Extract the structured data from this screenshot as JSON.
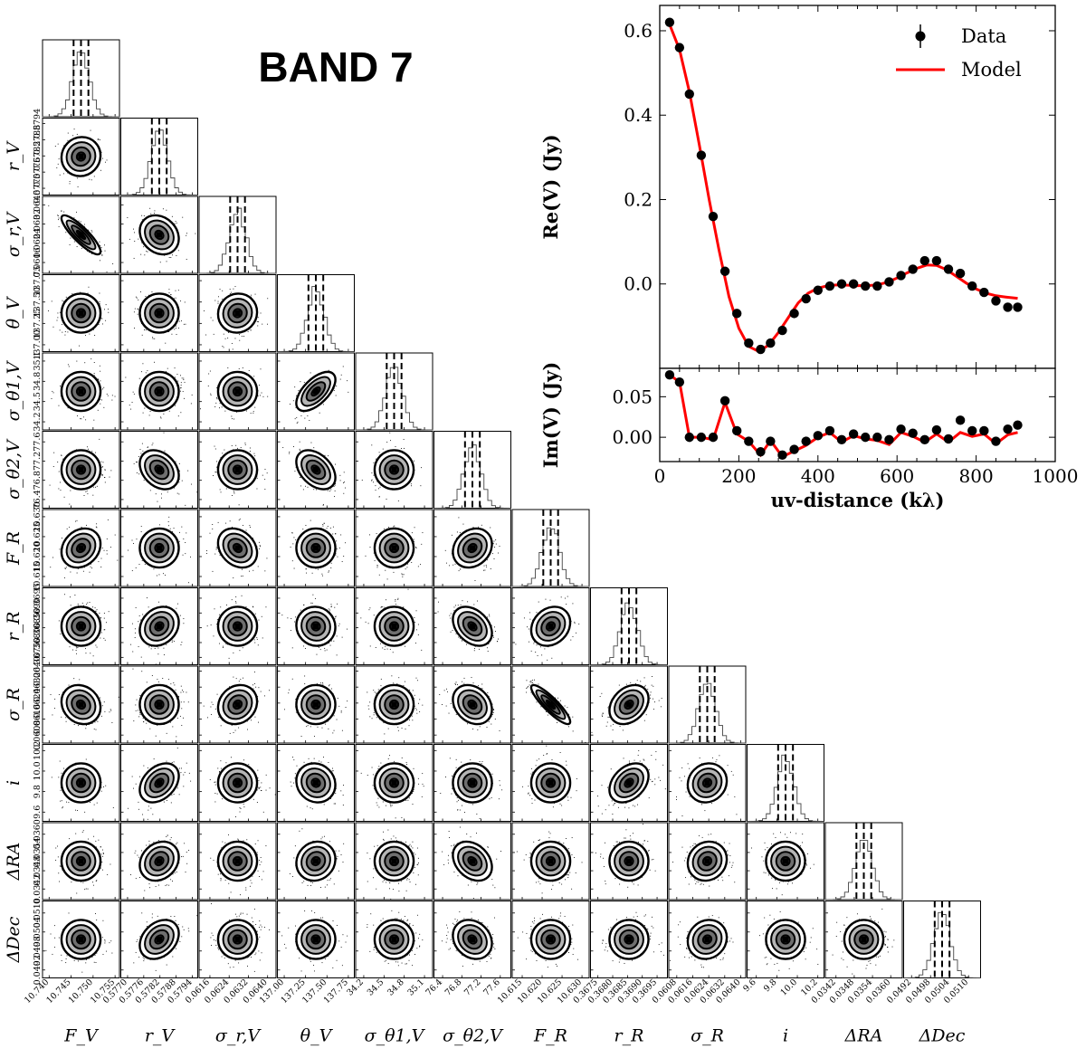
{
  "figure": {
    "band_label": "BAND 7"
  },
  "chart_data": [
    {
      "type": "corner",
      "title": "BAND 7",
      "parameters": [
        {
          "key": "F_V",
          "label": "F_V",
          "ticks": [
            "10.740",
            "10.745",
            "10.750",
            "10.755"
          ],
          "range": [
            10.7385,
            10.756
          ]
        },
        {
          "key": "r_V",
          "label": "r_V",
          "ticks": [
            "0.5770",
            "0.5776",
            "0.5782",
            "0.5788",
            "0.5794"
          ],
          "range": [
            0.57675,
            0.5796
          ]
        },
        {
          "key": "sigma_r_V",
          "label": "σ_r,V",
          "ticks": [
            "0.0616",
            "0.0624",
            "0.0632",
            "0.0640"
          ],
          "range": [
            0.06115,
            0.06435
          ]
        },
        {
          "key": "theta_V",
          "label": "θ_V",
          "ticks": [
            "137.00",
            "137.25",
            "137.50",
            "137.75"
          ],
          "range": [
            136.92,
            137.82
          ]
        },
        {
          "key": "sigma_theta1_V",
          "label": "σ_θ1,V",
          "ticks": [
            "34.2",
            "34.5",
            "34.8",
            "35.1"
          ],
          "range": [
            34.08,
            35.22
          ]
        },
        {
          "key": "sigma_theta2_V",
          "label": "σ_θ2,V",
          "ticks": [
            "76.4",
            "76.8",
            "77.2",
            "77.6"
          ],
          "range": [
            76.22,
            77.82
          ]
        },
        {
          "key": "F_R",
          "label": "F_R",
          "ticks": [
            "10.615",
            "10.620",
            "10.625",
            "10.630"
          ],
          "range": [
            10.6125,
            10.6318
          ]
        },
        {
          "key": "r_R",
          "label": "r_R",
          "ticks": [
            "0.3675",
            "0.3680",
            "0.3685",
            "0.3690",
            "0.3695"
          ],
          "range": [
            0.36725,
            0.36985
          ]
        },
        {
          "key": "sigma_R",
          "label": "σ_R",
          "ticks": [
            "0.0608",
            "0.0616",
            "0.0624",
            "0.0632",
            "0.0640"
          ],
          "range": [
            0.0604,
            0.06425
          ]
        },
        {
          "key": "i",
          "label": "i",
          "ticks": [
            "9.6",
            "9.8",
            "10.0",
            "10.2"
          ],
          "range": [
            9.51,
            10.26
          ]
        },
        {
          "key": "dRA",
          "label": "ΔRA",
          "ticks": [
            "0.0342",
            "0.0348",
            "0.0354",
            "0.0360"
          ],
          "range": [
            0.03385,
            0.03638
          ]
        },
        {
          "key": "dDec",
          "label": "ΔDec",
          "ticks": [
            "0.0492",
            "0.0498",
            "0.0504",
            "0.0510"
          ],
          "range": [
            0.04895,
            0.05138
          ]
        }
      ],
      "correlations": [
        [
          1,
          0,
          0,
          0,
          0,
          0,
          0,
          0,
          0,
          0,
          0,
          0
        ],
        [
          0.05,
          1,
          0,
          0,
          0,
          0,
          0,
          0,
          0,
          0,
          0,
          0
        ],
        [
          -0.86,
          -0.2,
          1,
          0,
          0,
          0,
          0,
          0,
          0,
          0,
          0,
          0
        ],
        [
          0.0,
          0.0,
          0.05,
          1,
          0,
          0,
          0,
          0,
          0,
          0,
          0,
          0
        ],
        [
          0.0,
          0.0,
          0.0,
          0.6,
          1,
          0,
          0,
          0,
          0,
          0,
          0,
          0
        ],
        [
          0.0,
          -0.3,
          0.0,
          -0.4,
          0.0,
          1,
          0,
          0,
          0,
          0,
          0,
          0
        ],
        [
          0.2,
          0.0,
          -0.25,
          0.0,
          0.0,
          0.2,
          1,
          0,
          0,
          0,
          0,
          0
        ],
        [
          0.0,
          0.2,
          0.0,
          -0.05,
          0.0,
          -0.35,
          0.2,
          1,
          0,
          0,
          0,
          0
        ],
        [
          -0.15,
          0.0,
          0.15,
          0.0,
          0.0,
          -0.25,
          -0.88,
          0.3,
          1,
          0,
          0,
          0
        ],
        [
          0.0,
          0.35,
          0.0,
          -0.1,
          0.0,
          0.0,
          0.0,
          0.35,
          0.1,
          1,
          0,
          0
        ],
        [
          0.0,
          0.2,
          0.0,
          0.1,
          0.0,
          -0.3,
          0.0,
          0.0,
          0.1,
          0.0,
          1,
          0
        ],
        [
          0.0,
          0.3,
          0.0,
          0.0,
          0.0,
          -0.2,
          0.0,
          0.0,
          0.1,
          0.0,
          0.0,
          1
        ]
      ]
    },
    {
      "type": "scatter",
      "xlabel": "uv-distance (kλ)",
      "ylabel": "Re(V) (Jy)",
      "xlim": [
        0,
        1000
      ],
      "ylim": [
        -0.2,
        0.66
      ],
      "xticks": [
        0,
        200,
        400,
        600,
        800,
        1000
      ],
      "yticks": [
        "0.0",
        "0.2",
        "0.4",
        "0.6"
      ],
      "legend": [
        "Data",
        "Model"
      ],
      "legend_position": "top-right",
      "data": {
        "x": [
          25,
          50,
          75,
          105,
          135,
          165,
          195,
          225,
          255,
          280,
          310,
          340,
          370,
          400,
          430,
          460,
          490,
          520,
          550,
          580,
          610,
          640,
          670,
          700,
          730,
          760,
          790,
          820,
          850,
          880,
          905
        ],
        "y": [
          0.62,
          0.56,
          0.45,
          0.305,
          0.16,
          0.03,
          -0.07,
          -0.14,
          -0.155,
          -0.14,
          -0.11,
          -0.07,
          -0.035,
          -0.015,
          -0.005,
          0.0,
          0.0,
          -0.005,
          -0.005,
          0.005,
          0.02,
          0.035,
          0.055,
          0.055,
          0.035,
          0.025,
          -0.005,
          -0.02,
          -0.04,
          -0.055,
          -0.055
        ]
      },
      "model": {
        "x": [
          25,
          50,
          75,
          100,
          125,
          150,
          175,
          200,
          225,
          250,
          275,
          300,
          325,
          350,
          375,
          400,
          425,
          450,
          475,
          500,
          525,
          550,
          575,
          600,
          625,
          650,
          675,
          700,
          725,
          750,
          775,
          800,
          825,
          850,
          875,
          905
        ],
        "y": [
          0.615,
          0.555,
          0.455,
          0.33,
          0.2,
          0.08,
          -0.03,
          -0.105,
          -0.148,
          -0.16,
          -0.145,
          -0.115,
          -0.08,
          -0.045,
          -0.022,
          -0.01,
          -0.004,
          -0.002,
          -0.003,
          -0.004,
          -0.004,
          -0.002,
          0.004,
          0.014,
          0.026,
          0.037,
          0.045,
          0.044,
          0.034,
          0.018,
          0.002,
          -0.012,
          -0.022,
          -0.028,
          -0.031,
          -0.034
        ]
      },
      "colors": {
        "data": "#000000",
        "model": "#ff0000"
      }
    },
    {
      "type": "scatter",
      "xlabel": "uv-distance (kλ)",
      "ylabel": "Im(V) (Jy)",
      "xlim": [
        0,
        1000
      ],
      "ylim": [
        -0.03,
        0.085
      ],
      "xticks": [
        0,
        200,
        400,
        600,
        800,
        1000
      ],
      "yticks": [
        "0.00",
        "0.05"
      ],
      "data": {
        "x": [
          25,
          50,
          75,
          105,
          135,
          165,
          195,
          225,
          255,
          280,
          310,
          340,
          370,
          400,
          430,
          460,
          490,
          520,
          550,
          580,
          610,
          640,
          670,
          700,
          730,
          760,
          790,
          820,
          850,
          880,
          905
        ],
        "y": [
          0.077,
          0.068,
          0.0,
          0.0,
          0.0,
          0.045,
          0.008,
          -0.005,
          -0.018,
          -0.005,
          -0.022,
          -0.015,
          -0.005,
          0.002,
          0.008,
          -0.003,
          0.004,
          0.0,
          0.0,
          -0.003,
          0.01,
          0.005,
          -0.003,
          0.009,
          -0.002,
          0.021,
          0.008,
          0.008,
          -0.005,
          0.01,
          0.015
        ]
      },
      "model": {
        "x": [
          25,
          50,
          75,
          105,
          135,
          165,
          195,
          225,
          255,
          280,
          310,
          340,
          370,
          400,
          430,
          460,
          490,
          520,
          550,
          580,
          610,
          640,
          670,
          700,
          730,
          760,
          790,
          820,
          850,
          880,
          905
        ],
        "y": [
          0.077,
          0.068,
          0.0,
          0.0,
          -0.003,
          0.043,
          0.004,
          -0.005,
          -0.022,
          -0.004,
          -0.024,
          -0.017,
          -0.01,
          0.0,
          0.006,
          -0.006,
          0.002,
          -0.002,
          -0.004,
          -0.009,
          0.006,
          0.001,
          -0.006,
          0.004,
          -0.006,
          0.006,
          0.001,
          0.004,
          -0.008,
          0.003,
          0.006
        ]
      },
      "colors": {
        "data": "#000000",
        "model": "#ff0000"
      }
    }
  ]
}
